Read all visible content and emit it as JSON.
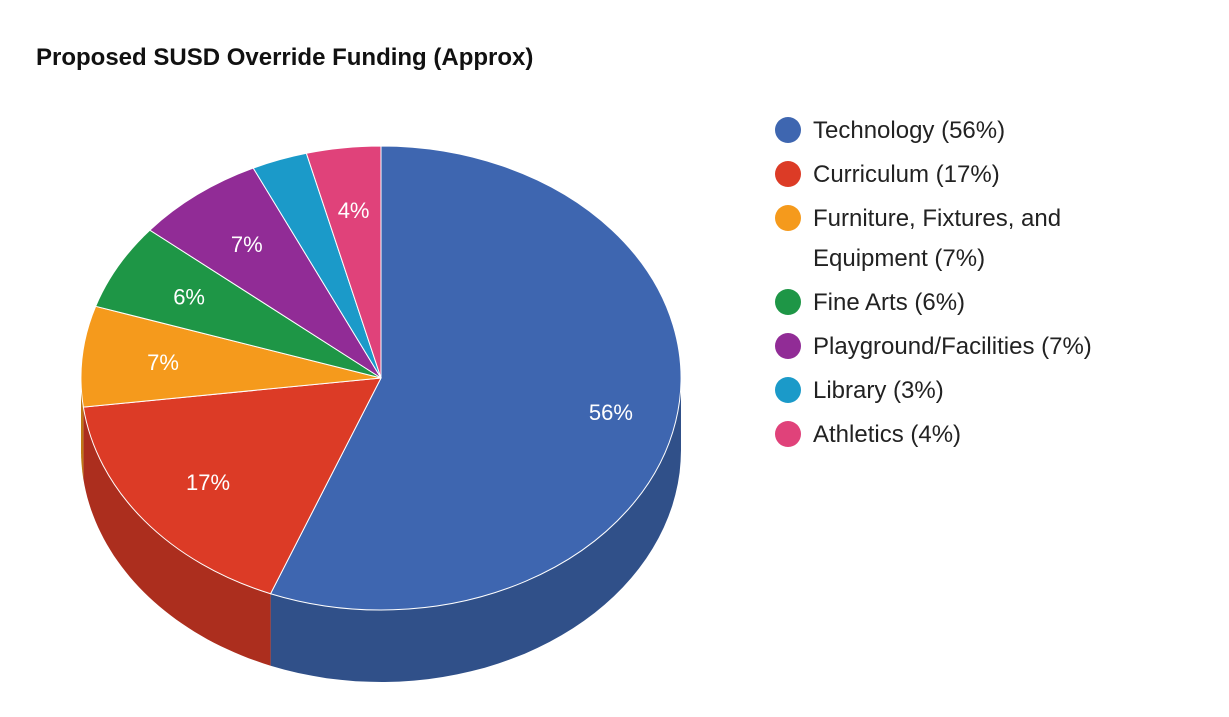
{
  "chart_data": {
    "type": "pie",
    "title": "Proposed SUSD Override Funding (Approx)",
    "slices": [
      {
        "label": "Technology",
        "value": 56,
        "data_label": "56%",
        "color": "#3e66b0",
        "legend": [
          "Technology (56%)"
        ]
      },
      {
        "label": "Curriculum",
        "value": 17,
        "data_label": "17%",
        "color": "#dc3b26",
        "legend": [
          "Curriculum (17%)"
        ]
      },
      {
        "label": "Furniture, Fixtures, and Equipment",
        "value": 7,
        "data_label": "7%",
        "color": "#f59a1c",
        "legend": [
          "Furniture, Fixtures, and",
          "Equipment (7%)"
        ]
      },
      {
        "label": "Fine Arts",
        "value": 6,
        "data_label": "6%",
        "color": "#1e9646",
        "legend": [
          "Fine Arts (6%)"
        ]
      },
      {
        "label": "Playground/Facilities",
        "value": 7,
        "data_label": "7%",
        "color": "#912c96",
        "legend": [
          "Playground/Facilities (7%)"
        ]
      },
      {
        "label": "Library",
        "value": 3,
        "data_label": "",
        "color": "#1b9ac9",
        "legend": [
          "Library (3%)"
        ]
      },
      {
        "label": "Athletics",
        "value": 4,
        "data_label": "4%",
        "color": "#e0427a",
        "legend": [
          "Athletics (4%)"
        ]
      }
    ],
    "legend_position": "right",
    "style": "3d"
  }
}
